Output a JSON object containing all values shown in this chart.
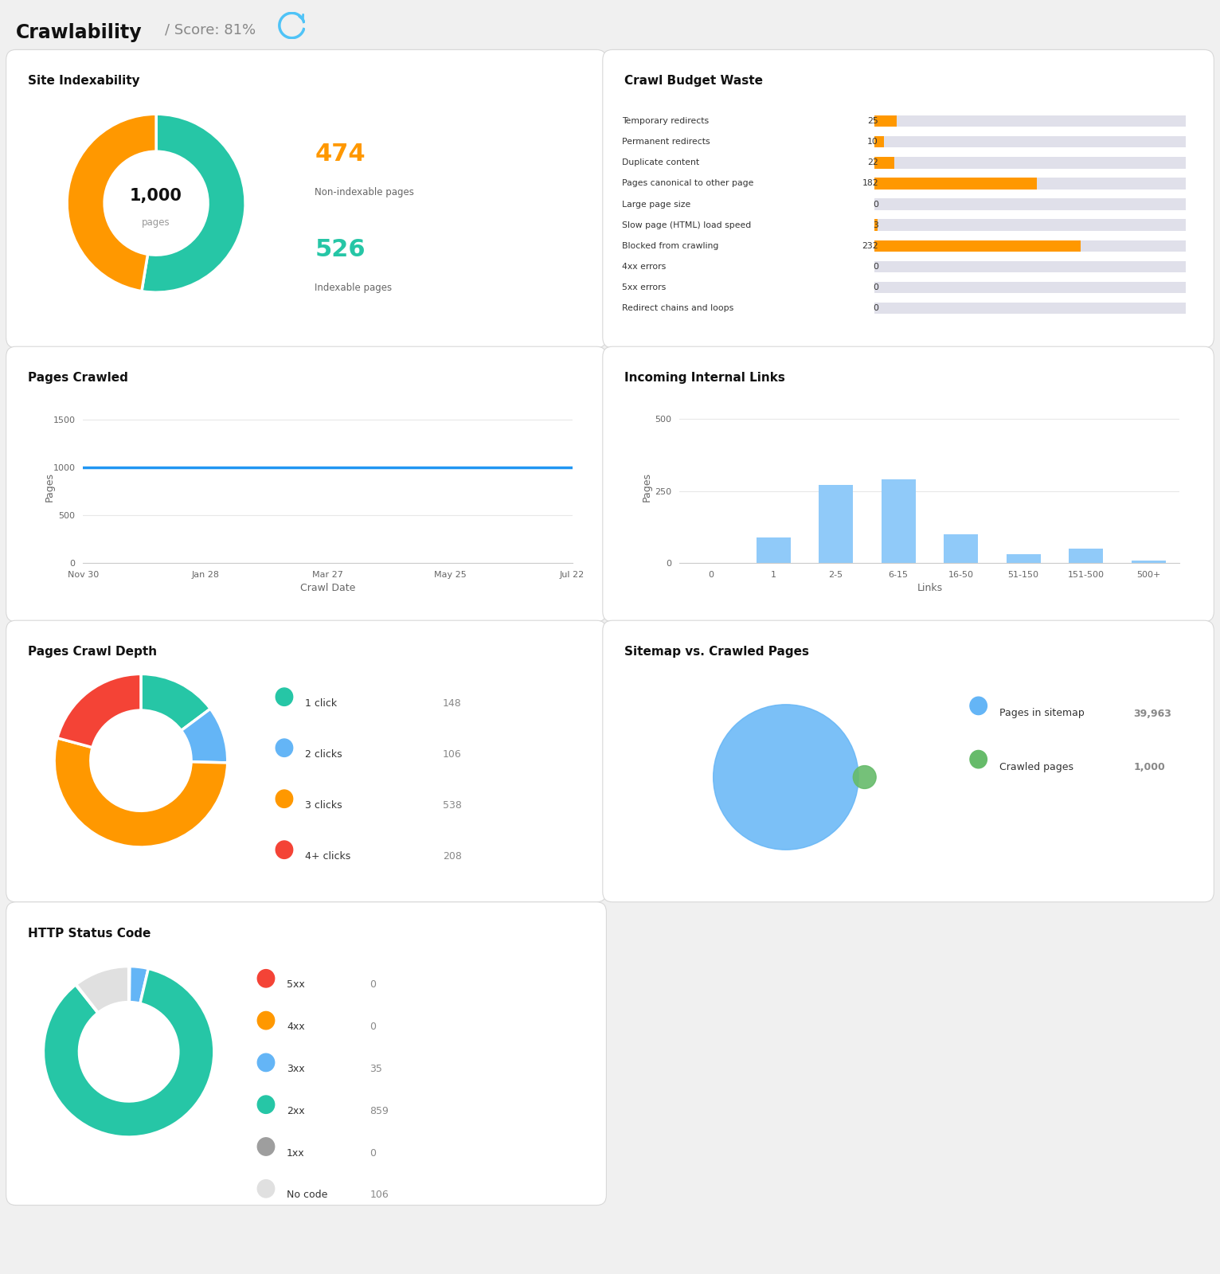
{
  "title": "Crawlability",
  "score": "81%",
  "bg_color": "#f0f0f0",
  "card_bg": "#ffffff",
  "card_border": "#d8d8d8",
  "site_indexability": {
    "title": "Site Indexability",
    "total": 1000,
    "non_indexable": 474,
    "indexable": 526,
    "non_indexable_color": "#ff9800",
    "indexable_color": "#26c6a6"
  },
  "crawl_budget": {
    "title": "Crawl Budget Waste",
    "items": [
      {
        "label": "Temporary redirects",
        "value": 25
      },
      {
        "label": "Permanent redirects",
        "value": 10
      },
      {
        "label": "Duplicate content",
        "value": 22
      },
      {
        "label": "Pages canonical to other page",
        "value": 182
      },
      {
        "label": "Large page size",
        "value": 0
      },
      {
        "label": "Slow page (HTML) load speed",
        "value": 3
      },
      {
        "label": "Blocked from crawling",
        "value": 232
      },
      {
        "label": "4xx errors",
        "value": 0
      },
      {
        "label": "5xx errors",
        "value": 0
      },
      {
        "label": "Redirect chains and loops",
        "value": 0
      }
    ],
    "max_value": 350,
    "bar_color": "#ff9800",
    "bar_bg": "#e0e0ea"
  },
  "pages_crawled": {
    "title": "Pages Crawled",
    "dates": [
      "Nov 30",
      "Jan 28",
      "Mar 27",
      "May 25",
      "Jul 22"
    ],
    "values": [
      1000,
      1000,
      1000,
      1000,
      1000
    ],
    "line_color": "#2196f3",
    "xlabel": "Crawl Date",
    "ylabel": "Pages",
    "yticks": [
      0,
      500,
      1000,
      1500
    ],
    "ylim": [
      0,
      1600
    ]
  },
  "incoming_links": {
    "title": "Incoming Internal Links",
    "categories": [
      "0",
      "1",
      "2-5",
      "6-15",
      "16-50",
      "51-150",
      "151-500",
      "500+"
    ],
    "values": [
      0,
      90,
      270,
      290,
      100,
      30,
      50,
      10
    ],
    "bar_color": "#90caf9",
    "xlabel": "Links",
    "ylabel": "Pages",
    "yticks": [
      0,
      250,
      500
    ],
    "ylim": [
      0,
      530
    ]
  },
  "crawl_depth": {
    "title": "Pages Crawl Depth",
    "labels": [
      "1 click",
      "2 clicks",
      "3 clicks",
      "4+ clicks"
    ],
    "values": [
      148,
      106,
      538,
      208
    ],
    "colors": [
      "#26c6a6",
      "#64b5f6",
      "#ff9800",
      "#f44336"
    ],
    "counts": [
      148,
      106,
      538,
      208
    ]
  },
  "sitemap_vs_crawled": {
    "title": "Sitemap vs. Crawled Pages",
    "sitemap_count": 39963,
    "crawled_count": 1000,
    "sitemap_color": "#64b5f6",
    "crawled_color": "#66bb6a",
    "sitemap_label": "Pages in sitemap",
    "crawled_label": "Crawled pages"
  },
  "http_status": {
    "title": "HTTP Status Code",
    "labels": [
      "5xx",
      "4xx",
      "3xx",
      "2xx",
      "1xx",
      "No code"
    ],
    "values": [
      0,
      0,
      35,
      859,
      0,
      106
    ],
    "colors": [
      "#f44336",
      "#ff9800",
      "#64b5f6",
      "#26c6a6",
      "#9e9e9e",
      "#e0e0e0"
    ]
  }
}
